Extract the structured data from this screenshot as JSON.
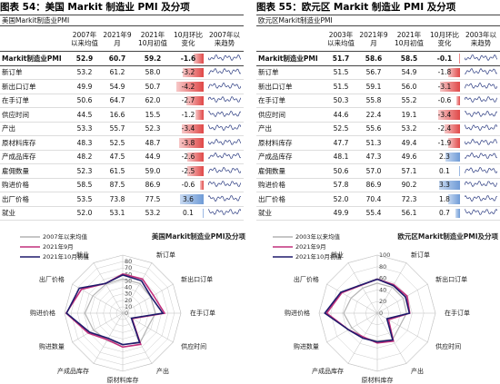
{
  "panels": [
    {
      "title": "图表 54：美国 Markit 制造业 PMI 及分项",
      "table": {
        "caption": "美国Markit制造业PMI",
        "header": [
          "2007年以来均值",
          "2021年9月",
          "2021年10月初值",
          "10月环比变化",
          "2007年以来趋势"
        ],
        "rows": [
          [
            "Markit制造业PMI",
            "52.9",
            "60.7",
            "59.2",
            "-1.6"
          ],
          [
            "新订单",
            "53.2",
            "61.2",
            "58.0",
            "-3.2"
          ],
          [
            "新出口订单",
            "49.9",
            "54.9",
            "50.7",
            "-4.2"
          ],
          [
            "在手订单",
            "50.6",
            "64.7",
            "62.0",
            "-2.7"
          ],
          [
            "供应时间",
            "44.5",
            "16.6",
            "15.5",
            "-1.2"
          ],
          [
            "产出",
            "53.3",
            "55.7",
            "52.3",
            "-3.4"
          ],
          [
            "原材料库存",
            "48.3",
            "52.5",
            "48.7",
            "-3.8"
          ],
          [
            "产成品库存",
            "48.2",
            "47.5",
            "44.9",
            "-2.6"
          ],
          [
            "雇佣数量",
            "52.3",
            "61.5",
            "59.0",
            "-2.5"
          ],
          [
            "购进价格",
            "58.5",
            "87.5",
            "86.9",
            "-0.6"
          ],
          [
            "出厂价格",
            "53.5",
            "73.8",
            "77.5",
            "3.6"
          ],
          [
            "就业",
            "52.0",
            "53.1",
            "53.2",
            "0.1"
          ]
        ]
      }
    },
    {
      "title": "图表 55：欧元区 Markit 制造业 PMI 及分项",
      "table": {
        "caption": "欧元区Markit制造业PMI",
        "header": [
          "2003年以来均值",
          "2021年9月",
          "2021年10月初值",
          "10月环比变化",
          "2003年以来趋势"
        ],
        "rows": [
          [
            "Markit制造业PMI",
            "51.7",
            "58.6",
            "58.5",
            "-0.1"
          ],
          [
            "新订单",
            "51.5",
            "56.7",
            "54.9",
            "-1.8"
          ],
          [
            "新出口订单",
            "51.5",
            "59.1",
            "56.0",
            "-3.1"
          ],
          [
            "在手订单",
            "50.3",
            "55.8",
            "55.2",
            "-0.6"
          ],
          [
            "供应时间",
            "44.6",
            "22.4",
            "19.1",
            "-3.4"
          ],
          [
            "产出",
            "52.5",
            "55.6",
            "53.2",
            "-2.4"
          ],
          [
            "原材料库存",
            "47.7",
            "51.3",
            "49.4",
            "-1.9"
          ],
          [
            "产成品库存",
            "48.1",
            "47.3",
            "49.6",
            "2.3"
          ],
          [
            "雇佣数量",
            "50.6",
            "57.0",
            "57.1",
            "0.1"
          ],
          [
            "购进价格",
            "57.8",
            "86.9",
            "90.2",
            "3.3"
          ],
          [
            "出厂价格",
            "52.0",
            "70.4",
            "72.3",
            "1.8"
          ],
          [
            "就业",
            "49.9",
            "55.4",
            "56.1",
            "0.7"
          ]
        ]
      }
    }
  ],
  "chart_data": [
    {
      "type": "radar",
      "title": "美国Markit制造业PMI及分项",
      "categories": [
        null,
        "新订单",
        "新出口订单",
        "在手订单",
        "供应时间",
        "产出",
        "原材料库存",
        "产成品库存",
        "购进数量",
        "购进价格",
        "出厂价格",
        "就业"
      ],
      "series": [
        {
          "name": "2007年以来均值",
          "color": "#b4b4b4",
          "values": [
            52.9,
            53.2,
            49.9,
            50.6,
            44.5,
            53.3,
            48.3,
            48.2,
            52.3,
            58.5,
            53.5,
            52.0
          ]
        },
        {
          "name": "2021年9月",
          "color": "#c2307c",
          "values": [
            60.7,
            61.2,
            54.9,
            64.7,
            16.6,
            55.7,
            52.5,
            47.5,
            61.5,
            87.5,
            73.8,
            53.1
          ]
        },
        {
          "name": "2021年10月初值",
          "color": "#1e1a6b",
          "values": [
            59.2,
            58.0,
            50.7,
            62.0,
            15.5,
            52.3,
            48.7,
            44.9,
            59.0,
            86.9,
            77.5,
            53.2
          ]
        }
      ],
      "ylim": [
        0,
        90
      ],
      "yticks": [
        0,
        10,
        20,
        30,
        40,
        50,
        60,
        70,
        80
      ]
    },
    {
      "type": "radar",
      "title": "欧元区Markit制造业PMI及分项",
      "categories": [
        null,
        "新订单",
        "新出口订单",
        "在手订单",
        "供应时间",
        "产出",
        "原材料库存",
        "产成品库存",
        "购进数量",
        "购进价格",
        "出厂价格",
        "就业"
      ],
      "series": [
        {
          "name": "2003年以来均值",
          "color": "#b4b4b4",
          "values": [
            51.7,
            51.5,
            51.5,
            50.3,
            44.6,
            52.5,
            47.7,
            48.1,
            50.6,
            57.8,
            52.0,
            49.9
          ]
        },
        {
          "name": "2021年9月",
          "color": "#c2307c",
          "values": [
            58.6,
            56.7,
            59.1,
            55.8,
            22.4,
            55.6,
            51.3,
            47.3,
            57.0,
            86.9,
            70.4,
            55.4
          ]
        },
        {
          "name": "2021年10月初值",
          "color": "#1e1a6b",
          "values": [
            58.5,
            54.9,
            56.0,
            55.2,
            19.1,
            53.2,
            49.4,
            49.6,
            57.1,
            90.2,
            72.3,
            56.1
          ]
        }
      ],
      "ylim": [
        0,
        100
      ],
      "yticks": [
        0,
        20,
        40,
        60,
        80,
        100
      ]
    }
  ]
}
